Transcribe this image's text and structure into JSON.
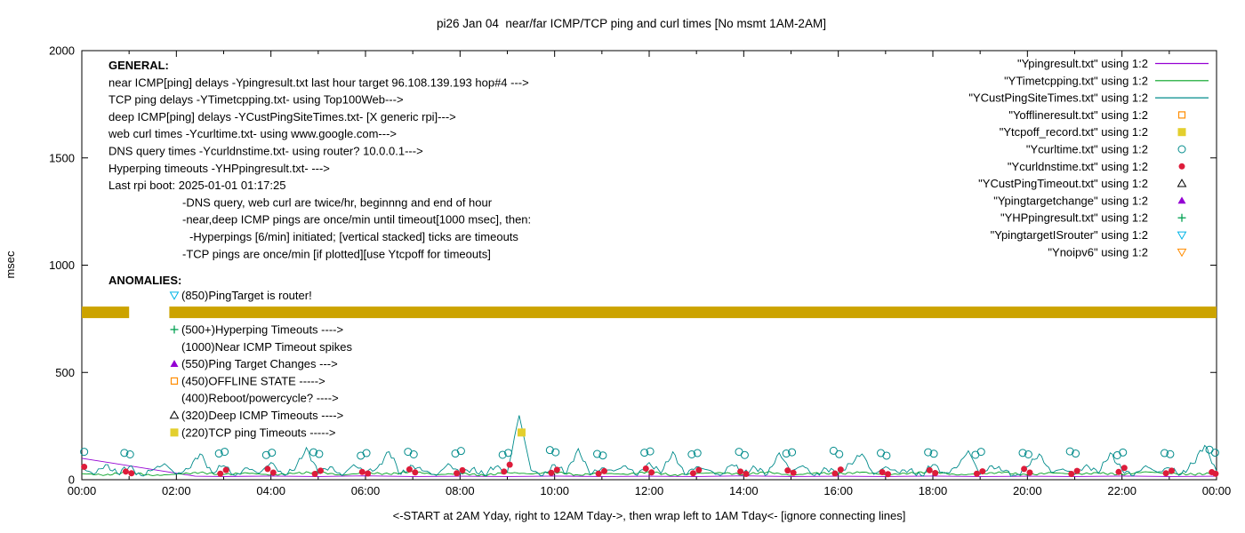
{
  "chart_data": {
    "type": "line",
    "title": "pi26 Jan 04  near/far ICMP/TCP ping and curl times [No msmt 1AM-2AM]",
    "xlabel": "<-START at 2AM Yday, right to 12AM Tday->, then wrap left to 1AM Tday<- [ignore connecting lines]",
    "ylabel": "msec",
    "xlim": [
      0,
      24
    ],
    "ylim": [
      0,
      2000
    ],
    "grid": false,
    "legend_position": "top-right",
    "x_tick_labels": [
      "00:00",
      "02:00",
      "04:00",
      "06:00",
      "08:00",
      "10:00",
      "12:00",
      "14:00",
      "16:00",
      "18:00",
      "20:00",
      "22:00",
      "00:00"
    ],
    "y_tick_values": [
      0,
      500,
      1000,
      1500,
      2000
    ],
    "legend_labels": [
      "\"Ypingresult.txt\" using 1:2",
      "\"YTimetcpping.txt\" using 1:2",
      "\"YCustPingSiteTimes.txt\" using 1:2",
      "\"Yofflineresult.txt\" using 1:2",
      "\"Ytcpoff_record.txt\" using 1:2",
      "\"Ycurltime.txt\" using 1:2",
      "\"Ycurldnstime.txt\" using 1:2",
      "\"YCustPingTimeout.txt\" using 1:2",
      "\"Ypingtargetchange\" using 1:2",
      "\"YHPpingresult.txt\" using 1:2",
      "\"YpingtargetISrouter\" using 1:2",
      "\"Ynoipv6\" using 1:2"
    ],
    "series": [
      {
        "name": "Ypingresult.txt",
        "style": "line",
        "color": "#9400D3",
        "points": [
          [
            0,
            100
          ],
          [
            2.4,
            16
          ],
          [
            3,
            15
          ],
          [
            4,
            17
          ],
          [
            5,
            15
          ],
          [
            6,
            18
          ],
          [
            7,
            15
          ],
          [
            8,
            16
          ],
          [
            9,
            15
          ],
          [
            10,
            17
          ],
          [
            11,
            15
          ],
          [
            12,
            16
          ],
          [
            13,
            15
          ],
          [
            14,
            18
          ],
          [
            15,
            15
          ],
          [
            16,
            16
          ],
          [
            17,
            15
          ],
          [
            18,
            17
          ],
          [
            19,
            15
          ],
          [
            20,
            16
          ],
          [
            21,
            15
          ],
          [
            22,
            17
          ],
          [
            23,
            15
          ],
          [
            24,
            16
          ]
        ]
      },
      {
        "name": "YTimetcpping.txt",
        "style": "line",
        "color": "#00A020",
        "x0": 0,
        "dx": 0.5,
        "jitter": 5,
        "values": [
          28,
          22,
          35,
          19,
          26,
          33,
          24,
          31,
          22,
          29,
          36,
          21,
          33,
          26,
          38,
          23,
          30,
          20,
          34,
          27,
          36,
          22,
          31,
          25,
          37,
          21,
          29,
          33,
          24,
          36,
          20,
          32,
          27,
          35,
          23,
          30,
          38,
          22,
          28,
          34,
          21,
          33,
          26,
          31,
          24,
          37,
          29,
          25,
          30
        ]
      },
      {
        "name": "YCustPingSiteTimes.txt",
        "style": "line",
        "color": "#008B8B",
        "x0": 0,
        "dx": 0.25,
        "jitter": 14,
        "values": [
          55,
          25,
          70,
          30,
          60,
          20,
          45,
          75,
          25,
          50,
          120,
          35,
          65,
          20,
          55,
          30,
          80,
          25,
          45,
          150,
          30,
          60,
          20,
          70,
          35,
          55,
          130,
          25,
          65,
          40,
          20,
          75,
          30,
          50,
          25,
          60,
          35,
          300,
          45,
          20,
          70,
          30,
          145,
          25,
          55,
          40,
          65,
          20,
          80,
          30,
          130,
          25,
          60,
          45,
          20,
          70,
          35,
          55,
          25,
          125,
          40,
          65,
          20,
          50,
          30,
          75,
          120,
          25,
          60,
          35,
          45,
          20,
          70,
          30,
          55,
          135,
          25,
          65,
          40,
          20,
          60,
          120,
          35,
          50,
          25,
          70,
          30,
          125,
          45,
          20,
          65,
          35,
          55,
          25,
          75,
          160,
          40
        ]
      },
      {
        "name": "Yofflineresult.txt",
        "style": "points",
        "marker": "square-open",
        "color": "#FF8C00",
        "points": []
      },
      {
        "name": "Ytcpoff_record.txt",
        "style": "points",
        "marker": "square-filled",
        "color": "#E3CF2E",
        "points": [
          [
            9.3,
            220
          ]
        ]
      },
      {
        "name": "Ycurltime.txt",
        "style": "points",
        "marker": "circle-open",
        "color": "#008B8B",
        "points": [
          [
            0.05,
            130
          ],
          [
            0.9,
            125
          ],
          [
            1.02,
            118
          ],
          [
            2.9,
            122
          ],
          [
            3.02,
            130
          ],
          [
            3.9,
            115
          ],
          [
            4.02,
            126
          ],
          [
            4.9,
            128
          ],
          [
            5.02,
            120
          ],
          [
            5.9,
            112
          ],
          [
            6.02,
            124
          ],
          [
            6.9,
            130
          ],
          [
            7.02,
            118
          ],
          [
            7.9,
            122
          ],
          [
            8.02,
            134
          ],
          [
            8.9,
            116
          ],
          [
            9.02,
            125
          ],
          [
            9.9,
            138
          ],
          [
            10.02,
            128
          ],
          [
            10.9,
            120
          ],
          [
            11.02,
            113
          ],
          [
            11.9,
            126
          ],
          [
            12.02,
            132
          ],
          [
            12.9,
            118
          ],
          [
            13.02,
            124
          ],
          [
            13.9,
            130
          ],
          [
            14.02,
            115
          ],
          [
            14.9,
            122
          ],
          [
            15.02,
            128
          ],
          [
            15.9,
            135
          ],
          [
            16.02,
            119
          ],
          [
            16.9,
            124
          ],
          [
            17.02,
            112
          ],
          [
            17.9,
            128
          ],
          [
            18.02,
            121
          ],
          [
            18.9,
            116
          ],
          [
            19.02,
            130
          ],
          [
            19.9,
            125
          ],
          [
            20.02,
            118
          ],
          [
            20.9,
            132
          ],
          [
            21.02,
            122
          ],
          [
            21.9,
            114
          ],
          [
            22.02,
            127
          ],
          [
            22.9,
            124
          ],
          [
            23.02,
            119
          ],
          [
            23.85,
            140
          ],
          [
            23.97,
            126
          ]
        ]
      },
      {
        "name": "Ycurldnstime.txt",
        "style": "points",
        "marker": "circle-filled",
        "color": "#DD1C3A",
        "points": [
          [
            0.05,
            60
          ],
          [
            0.93,
            38
          ],
          [
            1.05,
            30
          ],
          [
            2.93,
            28
          ],
          [
            3.05,
            45
          ],
          [
            3.93,
            50
          ],
          [
            4.05,
            33
          ],
          [
            4.93,
            27
          ],
          [
            5.05,
            42
          ],
          [
            5.93,
            36
          ],
          [
            6.05,
            29
          ],
          [
            6.93,
            48
          ],
          [
            7.05,
            34
          ],
          [
            7.93,
            30
          ],
          [
            8.05,
            44
          ],
          [
            8.93,
            38
          ],
          [
            9.05,
            70
          ],
          [
            9.93,
            32
          ],
          [
            10.05,
            46
          ],
          [
            10.93,
            28
          ],
          [
            11.05,
            40
          ],
          [
            11.93,
            52
          ],
          [
            12.05,
            34
          ],
          [
            12.93,
            30
          ],
          [
            13.05,
            45
          ],
          [
            13.93,
            38
          ],
          [
            14.05,
            27
          ],
          [
            14.93,
            43
          ],
          [
            15.05,
            32
          ],
          [
            15.93,
            29
          ],
          [
            16.05,
            47
          ],
          [
            16.93,
            35
          ],
          [
            17.05,
            26
          ],
          [
            17.93,
            44
          ],
          [
            18.05,
            31
          ],
          [
            18.93,
            28
          ],
          [
            19.05,
            39
          ],
          [
            19.93,
            50
          ],
          [
            20.05,
            33
          ],
          [
            20.93,
            27
          ],
          [
            21.05,
            41
          ],
          [
            21.93,
            36
          ],
          [
            22.05,
            55
          ],
          [
            22.93,
            30
          ],
          [
            23.05,
            42
          ],
          [
            23.9,
            35
          ],
          [
            23.98,
            28
          ]
        ]
      },
      {
        "name": "YCustPingTimeout.txt",
        "style": "points",
        "marker": "triangle-up-open",
        "color": "#000000",
        "points": []
      },
      {
        "name": "Ypingtargetchange",
        "style": "points",
        "marker": "triangle-up-filled",
        "color": "#9400D3",
        "points": []
      },
      {
        "name": "YHPpingresult.txt",
        "style": "points",
        "marker": "plus",
        "color": "#00A050",
        "points": []
      },
      {
        "name": "YpingtargetISrouter",
        "style": "points",
        "marker": "triangle-down-open",
        "color": "#00B4E6",
        "points": []
      },
      {
        "name": "Ynoipv6",
        "style": "band",
        "marker": "triangle-down-open",
        "color": "#CCA300",
        "legend_color": "#FF8C00",
        "band_y": 780,
        "band_half_height": 27,
        "segments": [
          [
            0,
            1.0
          ],
          [
            1.85,
            24
          ]
        ]
      }
    ],
    "annotations": {
      "general_header": "GENERAL:",
      "general_lines": [
        "near ICMP[ping] delays -Ypingresult.txt last hour target 96.108.139.193 hop#4 --->",
        "TCP ping delays -YTimetcpping.txt- using Top100Web--->",
        "deep ICMP[ping] delays -YCustPingSiteTimes.txt- [X generic rpi]--->",
        "web curl times -Ycurltime.txt- using www.google.com--->",
        "DNS query times -Ycurldnstime.txt- using router? 10.0.0.1--->",
        "Hyperping timeouts -YHPpingresult.txt- --->",
        "Last rpi boot: 2025-01-01 01:17:25"
      ],
      "general_notes": [
        {
          "text": "-DNS query, web curl are twice/hr, beginnng and end of hour",
          "indent": 1
        },
        {
          "text": "-near,deep ICMP pings are once/min until timeout[1000 msec], then:",
          "indent": 1
        },
        {
          "text": "-Hyperpings [6/min] initiated; [vertical stacked] ticks are timeouts",
          "indent": 2
        },
        {
          "text": "-TCP pings are once/min [if plotted][use Ytcpoff for timeouts]",
          "indent": 1
        }
      ],
      "anomalies_header": "ANOMALIES:",
      "anomalies": [
        {
          "text": "(850)PingTarget is router!",
          "marker": "triangle-down-open",
          "marker_color": "#00B4E6"
        },
        {
          "text": "",
          "marker": "triangle-down-open",
          "marker_color": "#FF8C00"
        },
        {
          "text": "(500+)Hyperping Timeouts ---->",
          "marker": "plus",
          "marker_color": "#00A050"
        },
        {
          "text": "(1000)Near ICMP Timeout spikes",
          "marker": "none"
        },
        {
          "text": "(550)Ping Target Changes --->",
          "marker": "triangle-up-filled",
          "marker_color": "#9400D3"
        },
        {
          "text": "(450)OFFLINE STATE ----->",
          "marker": "square-open",
          "marker_color": "#FF8C00"
        },
        {
          "text": "(400)Reboot/powercycle? ---->",
          "marker": "none"
        },
        {
          "text": "(320)Deep ICMP Timeouts ---->",
          "marker": "triangle-up-open",
          "marker_color": "#000000"
        },
        {
          "text": "(220)TCP ping Timeouts ----->",
          "marker": "square-filled",
          "marker_color": "#E3CF2E"
        }
      ]
    }
  }
}
